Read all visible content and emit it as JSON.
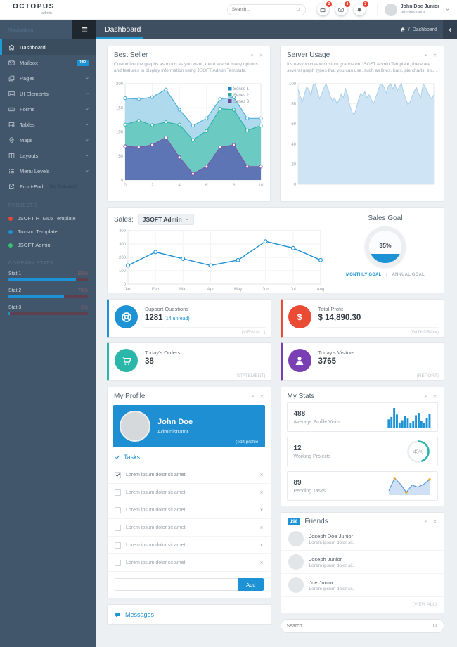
{
  "topbar": {
    "logo": "OCTOPUS",
    "logo_sub": "admin",
    "search_placeholder": "Search...",
    "notifications": [
      {
        "icon": "briefcase",
        "count": "3"
      },
      {
        "icon": "envelope",
        "count": "4"
      },
      {
        "icon": "bell",
        "count": "3"
      }
    ],
    "user": {
      "name": "John Doe Junior",
      "role": "administrator"
    }
  },
  "page_header": {
    "nav_label": "Navigation",
    "title": "Dashboard",
    "breadcrumb_sep": "/",
    "breadcrumb_current": "Dashboard"
  },
  "sidebar": {
    "items": [
      {
        "label": "Dashboard",
        "icon": "home",
        "active": true
      },
      {
        "label": "Mailbox",
        "icon": "envelope",
        "badge": "182"
      },
      {
        "label": "Pages",
        "icon": "pages",
        "chevron": true
      },
      {
        "label": "UI Elements",
        "icon": "image",
        "chevron": true
      },
      {
        "label": "Forms",
        "icon": "keyboard",
        "chevron": true
      },
      {
        "label": "Tables",
        "icon": "table",
        "chevron": true
      },
      {
        "label": "Maps",
        "icon": "map-marker",
        "chevron": true
      },
      {
        "label": "Layouts",
        "icon": "columns",
        "chevron": true
      },
      {
        "label": "Menu Levels",
        "icon": "list",
        "chevron": true
      },
      {
        "label": "Front-End",
        "icon": "external-link",
        "suffix": "(Not Included)"
      }
    ],
    "projects_header": "PROJECTS",
    "projects": [
      {
        "label": "JSOFT HTML5 Template",
        "color": "#e9473a"
      },
      {
        "label": "Tucson Template",
        "color": "#1d92d5"
      },
      {
        "label": "JSOFT Admin",
        "color": "#34c176"
      }
    ],
    "stats_header": "COMPANY STATS",
    "stats": [
      {
        "label": "Stat 1",
        "value": "85%",
        "pct": 85
      },
      {
        "label": "Stat 2",
        "value": "70%",
        "pct": 70
      },
      {
        "label": "Stat 3",
        "value": "2%",
        "pct": 2
      }
    ]
  },
  "best_seller": {
    "title": "Best Seller",
    "subtitle": "Customize the graphs as much as you want, there are so many options and features to display information using JSOFT Admin Template."
  },
  "server_usage": {
    "title": "Server Usage",
    "subtitle": "It's easy to create custom graphs on JSOFT Admin Template, there are several graph types that you can use, such as lines, bars, pie charts, etc..."
  },
  "sales": {
    "label": "Sales:",
    "dropdown": "JSOFT Admin",
    "goal_title": "Sales Goal",
    "goal_value": "35%",
    "tab_monthly": "MONTHLY GOAL",
    "tab_annual": "ANNUAL GOAL"
  },
  "stat_cards": [
    {
      "title": "Support Questions",
      "value": "1281",
      "extra": "(14 unread)",
      "action": "(VIEW ALL)",
      "color": "#1d92d5",
      "icon": "life-ring"
    },
    {
      "title": "Total Profit",
      "value": "$ 14,890.30",
      "extra": "",
      "action": "(WITHDRAW)",
      "color": "#ea4b35",
      "icon": "dollar"
    },
    {
      "title": "Today's Orders",
      "value": "38",
      "extra": "",
      "action": "(STATEMENT)",
      "color": "#2ab7a9",
      "icon": "cart"
    },
    {
      "title": "Today's Visitors",
      "value": "3765",
      "extra": "",
      "action": "(REPORT)",
      "color": "#7a3fb3",
      "icon": "user"
    }
  ],
  "my_profile": {
    "title": "My Profile",
    "name": "John Doe",
    "role": "Administrator",
    "edit": "(edit profile)",
    "tasks_header": "Tasks",
    "tasks": [
      {
        "text": "Lorem ipsum dolor sit amet",
        "done": true
      },
      {
        "text": "Lorem ipsum dolor sit amet",
        "done": false
      },
      {
        "text": "Lorem ipsum dolor sit amet",
        "done": false
      },
      {
        "text": "Lorem ipsum dolor sit amet",
        "done": false
      },
      {
        "text": "Lorem ipsum dolor sit amet",
        "done": false
      },
      {
        "text": "Lorem ipsum dolor sit amet",
        "done": false
      }
    ],
    "add_button": "Add"
  },
  "messages": {
    "title": "Messages"
  },
  "my_stats": {
    "title": "My Stats",
    "items": [
      {
        "value": "488",
        "label": "Average Profile Visits"
      },
      {
        "value": "12",
        "label": "Working Projects",
        "ring": "45%"
      },
      {
        "value": "89",
        "label": "Pending Tasks"
      }
    ]
  },
  "friends": {
    "title": "Friends",
    "badge": "198",
    "action": "(VIEW ALL)",
    "search_placeholder": "Search...",
    "items": [
      {
        "name": "Joseph Doe Junior",
        "desc": "Lorem ipsum dolor sit."
      },
      {
        "name": "Joseph Junior",
        "desc": "Lorem ipsum dolor sit."
      },
      {
        "name": "Joe Junior",
        "desc": "Lorem ipsum dolor sit."
      }
    ]
  },
  "chart_data": [
    {
      "id": "best_seller",
      "type": "area",
      "x": [
        0,
        1,
        2,
        3,
        4,
        5,
        6,
        7,
        8,
        9,
        10
      ],
      "xticks": [
        0,
        2,
        4,
        6,
        8,
        10
      ],
      "ylim": [
        0,
        200
      ],
      "yticks": [
        0,
        50,
        100,
        150,
        200
      ],
      "legend_position": "top-right",
      "legend_colors": [
        "#1e88c7",
        "#2fa79e",
        "#6a4a9e"
      ],
      "series": [
        {
          "name": "Series 1",
          "color": "#4fb0dd",
          "fill": "#a9d7ec",
          "values": [
            170,
            168,
            172,
            188,
            146,
            113,
            128,
            168,
            172,
            128,
            128
          ]
        },
        {
          "name": "Series 2",
          "color": "#2fb3a8",
          "fill": "#66c9bf",
          "values": [
            115,
            123,
            114,
            120,
            115,
            83,
            102,
            148,
            146,
            103,
            113
          ]
        },
        {
          "name": "Series 3",
          "color": "#7e57a8",
          "fill": "#5c6db4",
          "values": [
            70,
            68,
            73,
            88,
            47,
            13,
            28,
            68,
            73,
            28,
            28
          ]
        }
      ]
    },
    {
      "id": "server_usage",
      "type": "area",
      "ylim": [
        0,
        100
      ],
      "yticks": [
        0,
        20,
        40,
        60,
        80,
        100
      ],
      "color": "#a9cfe6",
      "fill": "#cfe5f5",
      "values": [
        95,
        87,
        82,
        90,
        97,
        94,
        88,
        99,
        100,
        92,
        85,
        90,
        96,
        100,
        94,
        87,
        83,
        86,
        80,
        84,
        90,
        86,
        95,
        89,
        78,
        72,
        69,
        75,
        84,
        90,
        88,
        92,
        86,
        89,
        84,
        80,
        86,
        92,
        99,
        100,
        96,
        91,
        98,
        100,
        95,
        99,
        93,
        97,
        100,
        91,
        85,
        79,
        82,
        88,
        93,
        96,
        90,
        86,
        100,
        97,
        92,
        88,
        85,
        89
      ]
    },
    {
      "id": "sales",
      "type": "line",
      "categories": [
        "Jan",
        "Feb",
        "Mar",
        "Apr",
        "May",
        "Jun",
        "Jul",
        "Aug"
      ],
      "values": [
        140,
        240,
        190,
        140,
        180,
        320,
        270,
        180
      ],
      "ylim": [
        0,
        400
      ],
      "yticks": [
        0,
        100,
        200,
        300,
        400
      ],
      "color": "#1d92d5"
    },
    {
      "id": "sales_goal",
      "type": "gauge",
      "value": 35,
      "color": "#1d92d5"
    },
    {
      "id": "profile_visits",
      "type": "bar",
      "color": "#1d92d5",
      "values": [
        50,
        65,
        120,
        80,
        30,
        45,
        70,
        55,
        28,
        40,
        75,
        90,
        42,
        28,
        60,
        85
      ]
    },
    {
      "id": "working_projects",
      "type": "donut",
      "value": 45,
      "color": "#2ab7a9"
    },
    {
      "id": "pending_tasks",
      "type": "area",
      "color": "#5b9bd5",
      "fill": "#cfe0f5",
      "values": [
        22,
        85,
        55,
        14,
        50,
        40,
        55,
        78
      ],
      "marker_color": "#f5a623",
      "marker_at": [
        1,
        3,
        7
      ]
    }
  ]
}
